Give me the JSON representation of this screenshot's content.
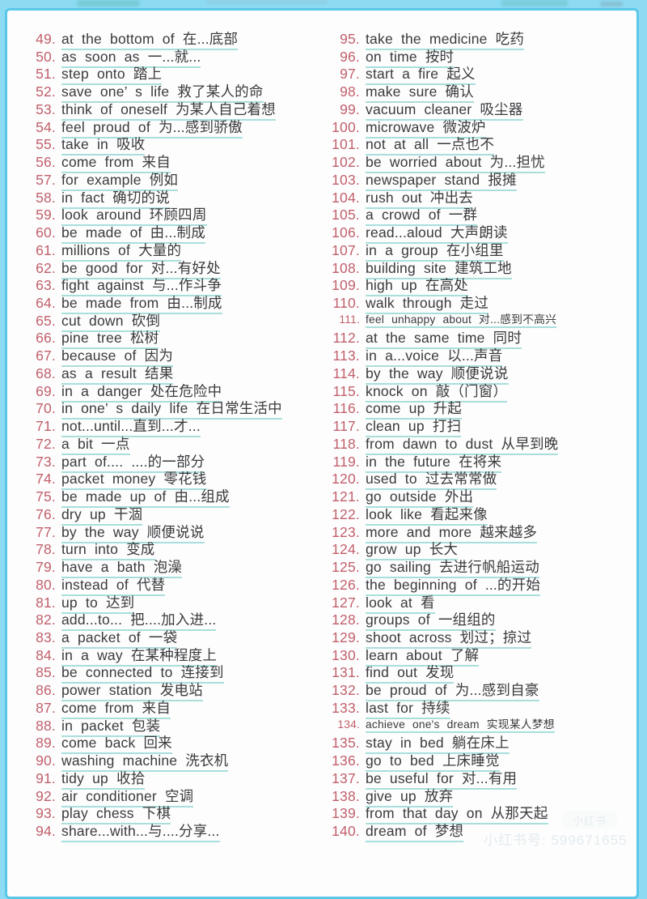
{
  "page": {
    "background_color": "#8ddaf3",
    "border_color": "#5ac7e9",
    "paper_color": "#fdfdfe",
    "number_color": "#c2606b",
    "text_color": "#3a3a3c",
    "underline_color": "#a9dedb"
  },
  "list": {
    "left": [
      {
        "num": "49.",
        "text": "at the bottom of 在...底部"
      },
      {
        "num": "50.",
        "text": "as soon as 一...就..."
      },
      {
        "num": "51.",
        "text": "step onto 踏上"
      },
      {
        "num": "52.",
        "text": "save one’ s life 救了某人的命"
      },
      {
        "num": "53.",
        "text": "think of oneself 为某人自己着想"
      },
      {
        "num": "54.",
        "text": "feel proud of 为...感到骄傲"
      },
      {
        "num": "55.",
        "text": "take in 吸收"
      },
      {
        "num": "56.",
        "text": "come from 来自"
      },
      {
        "num": "57.",
        "text": "for example 例如"
      },
      {
        "num": "58.",
        "text": "in fact 确切的说"
      },
      {
        "num": "59.",
        "text": "look around 环顾四周"
      },
      {
        "num": "60.",
        "text": "be made of 由...制成"
      },
      {
        "num": "61.",
        "text": "millions of 大量的"
      },
      {
        "num": "62.",
        "text": "be good for 对...有好处"
      },
      {
        "num": "63.",
        "text": "fight against 与...作斗争"
      },
      {
        "num": "64.",
        "text": "be made from 由...制成"
      },
      {
        "num": "65.",
        "text": "cut down 砍倒"
      },
      {
        "num": "66.",
        "text": "pine tree 松树"
      },
      {
        "num": "67.",
        "text": "because of 因为"
      },
      {
        "num": "68.",
        "text": "as a result 结果"
      },
      {
        "num": "69.",
        "text": "in a danger 处在危险中"
      },
      {
        "num": "70.",
        "text": "in one’ s daily life 在日常生活中"
      },
      {
        "num": "71.",
        "text": "not...until...直到...才..."
      },
      {
        "num": "72.",
        "text": "a bit 一点"
      },
      {
        "num": "73.",
        "text": "part of.... ....的一部分"
      },
      {
        "num": "74.",
        "text": "packet money 零花钱"
      },
      {
        "num": "75.",
        "text": "be made up of 由...组成"
      },
      {
        "num": "76.",
        "text": "dry up 干涸"
      },
      {
        "num": "77.",
        "text": "by the way 顺便说说"
      },
      {
        "num": "78.",
        "text": "turn into 变成"
      },
      {
        "num": "79.",
        "text": "have a bath 泡澡"
      },
      {
        "num": "80.",
        "text": "instead of 代替"
      },
      {
        "num": "81.",
        "text": "up to 达到"
      },
      {
        "num": "82.",
        "text": "add...to... 把....加入进..."
      },
      {
        "num": "83.",
        "text": "a packet of 一袋"
      },
      {
        "num": "84.",
        "text": "in a way 在某种程度上"
      },
      {
        "num": "85.",
        "text": "be connected to 连接到"
      },
      {
        "num": "86.",
        "text": "power station 发电站"
      },
      {
        "num": "87.",
        "text": "come from 来自"
      },
      {
        "num": "88.",
        "text": "in packet 包装"
      },
      {
        "num": "89.",
        "text": "come back 回来"
      },
      {
        "num": "90.",
        "text": "washing machine 洗衣机"
      },
      {
        "num": "91.",
        "text": "tidy up 收拾"
      },
      {
        "num": "92.",
        "text": "air conditioner 空调"
      },
      {
        "num": "93.",
        "text": "play chess 下棋"
      },
      {
        "num": "94.",
        "text": "share...with...与....分享..."
      }
    ],
    "right": [
      {
        "num": "95.",
        "text": "take the medicine 吃药"
      },
      {
        "num": "96.",
        "text": "on time 按时"
      },
      {
        "num": "97.",
        "text": "start a fire 起义"
      },
      {
        "num": "98.",
        "text": "make sure 确认"
      },
      {
        "num": "99.",
        "text": "vacuum cleaner 吸尘器"
      },
      {
        "num": "100.",
        "text": "microwave 微波炉"
      },
      {
        "num": "101.",
        "text": "not at all 一点也不"
      },
      {
        "num": "102.",
        "text": "be worried about 为...担忧"
      },
      {
        "num": "103.",
        "text": "newspaper stand 报摊"
      },
      {
        "num": "104.",
        "text": "rush out 冲出去"
      },
      {
        "num": "105.",
        "text": "a crowd of 一群"
      },
      {
        "num": "106.",
        "text": "read...aloud 大声朗读"
      },
      {
        "num": "107.",
        "text": "in a group 在小组里"
      },
      {
        "num": "108.",
        "text": "building site 建筑工地"
      },
      {
        "num": "109.",
        "text": "high up 在高处"
      },
      {
        "num": "110.",
        "text": "walk through 走过"
      },
      {
        "num": "111.",
        "text": "feel unhappy about 对...感到不高兴",
        "small": true
      },
      {
        "num": "112.",
        "text": "at the same time 同时"
      },
      {
        "num": "113.",
        "text": "in a...voice 以...声音"
      },
      {
        "num": "114.",
        "text": "by the way 顺便说说"
      },
      {
        "num": "115.",
        "text": "knock on 敲（门窗）"
      },
      {
        "num": "116.",
        "text": "come up 升起"
      },
      {
        "num": "117.",
        "text": "clean up 打扫"
      },
      {
        "num": "118.",
        "text": "from dawn to dust 从早到晚"
      },
      {
        "num": "119.",
        "text": "in the future 在将来"
      },
      {
        "num": "120.",
        "text": "used to 过去常常做"
      },
      {
        "num": "121.",
        "text": "go outside 外出"
      },
      {
        "num": "122.",
        "text": "look like 看起来像"
      },
      {
        "num": "123.",
        "text": "more and more 越来越多"
      },
      {
        "num": "124.",
        "text": "grow up 长大"
      },
      {
        "num": "125.",
        "text": "go sailing 去进行帆船运动"
      },
      {
        "num": "126.",
        "text": "the beginning of ...的开始"
      },
      {
        "num": "127.",
        "text": "look at 看"
      },
      {
        "num": "128.",
        "text": "groups of 一组组的"
      },
      {
        "num": "129.",
        "text": "shoot across 划过；掠过"
      },
      {
        "num": "130.",
        "text": "learn about 了解"
      },
      {
        "num": "131.",
        "text": "find out 发现"
      },
      {
        "num": "132.",
        "text": "be proud of 为...感到自豪"
      },
      {
        "num": "133.",
        "text": "last for 持续"
      },
      {
        "num": "134.",
        "text": "achieve one's dream 实现某人梦想",
        "small": true
      },
      {
        "num": "135.",
        "text": "stay in bed 躺在床上"
      },
      {
        "num": "136.",
        "text": "go to bed 上床睡觉"
      },
      {
        "num": "137.",
        "text": "be useful for 对...有用"
      },
      {
        "num": "138.",
        "text": "give up 放弃"
      },
      {
        "num": "139.",
        "text": "from that day on 从那天起"
      },
      {
        "num": "140.",
        "text": "dream of 梦想"
      }
    ]
  },
  "watermark": {
    "badge": "小红书",
    "account": "小红书号: 599671655"
  }
}
